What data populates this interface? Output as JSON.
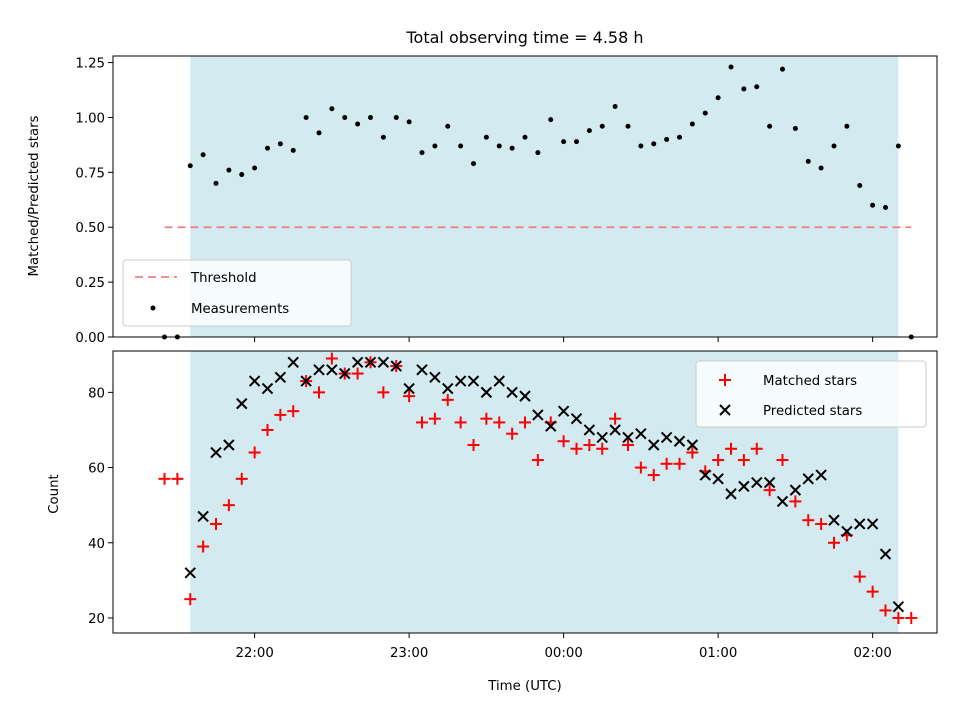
{
  "chart_data": [
    {
      "type": "scatter",
      "title": "Total observing time = 4.58 h",
      "xlabel": "",
      "ylabel": "Matched/Predicted stars",
      "ylim": [
        0,
        1.28
      ],
      "xlim": [
        "21:05",
        "02:25"
      ],
      "yticks": [
        0.0,
        0.25,
        0.5,
        0.75,
        1.0,
        1.25
      ],
      "ytick_labels": [
        "0.00",
        "0.25",
        "0.50",
        "0.75",
        "1.00",
        "1.25"
      ],
      "shaded_interval": [
        "21:35",
        "02:10"
      ],
      "shade_color": "#d3eaf0",
      "threshold": {
        "name": "Threshold",
        "value": 0.5,
        "x_range": [
          "21:25",
          "02:15"
        ],
        "color": "#f08080",
        "style": "dashed"
      },
      "series": [
        {
          "name": "Measurements",
          "color": "#000000",
          "marker": "dot",
          "points": [
            [
              "21:25",
              0.0
            ],
            [
              "21:30",
              0.0
            ],
            [
              "21:35",
              0.78
            ],
            [
              "21:40",
              0.83
            ],
            [
              "21:45",
              0.7
            ],
            [
              "21:50",
              0.76
            ],
            [
              "21:55",
              0.74
            ],
            [
              "22:00",
              0.77
            ],
            [
              "22:05",
              0.86
            ],
            [
              "22:10",
              0.88
            ],
            [
              "22:15",
              0.85
            ],
            [
              "22:20",
              1.0
            ],
            [
              "22:25",
              0.93
            ],
            [
              "22:30",
              1.04
            ],
            [
              "22:35",
              1.0
            ],
            [
              "22:40",
              0.97
            ],
            [
              "22:45",
              1.0
            ],
            [
              "22:50",
              0.91
            ],
            [
              "22:55",
              1.0
            ],
            [
              "23:00",
              0.98
            ],
            [
              "23:05",
              0.84
            ],
            [
              "23:10",
              0.87
            ],
            [
              "23:15",
              0.96
            ],
            [
              "23:20",
              0.87
            ],
            [
              "23:25",
              0.79
            ],
            [
              "23:30",
              0.91
            ],
            [
              "23:35",
              0.87
            ],
            [
              "23:40",
              0.86
            ],
            [
              "23:45",
              0.91
            ],
            [
              "23:50",
              0.84
            ],
            [
              "23:55",
              0.99
            ],
            [
              "00:00",
              0.89
            ],
            [
              "00:05",
              0.89
            ],
            [
              "00:10",
              0.94
            ],
            [
              "00:15",
              0.96
            ],
            [
              "00:20",
              1.05
            ],
            [
              "00:25",
              0.96
            ],
            [
              "00:30",
              0.87
            ],
            [
              "00:35",
              0.88
            ],
            [
              "00:40",
              0.9
            ],
            [
              "00:45",
              0.91
            ],
            [
              "00:50",
              0.97
            ],
            [
              "00:55",
              1.02
            ],
            [
              "01:00",
              1.09
            ],
            [
              "01:05",
              1.23
            ],
            [
              "01:10",
              1.13
            ],
            [
              "01:15",
              1.14
            ],
            [
              "01:20",
              0.96
            ],
            [
              "01:25",
              1.22
            ],
            [
              "01:30",
              0.95
            ],
            [
              "01:35",
              0.8
            ],
            [
              "01:40",
              0.77
            ],
            [
              "01:45",
              0.87
            ],
            [
              "01:50",
              0.96
            ],
            [
              "01:55",
              0.69
            ],
            [
              "02:00",
              0.6
            ],
            [
              "02:05",
              0.59
            ],
            [
              "02:10",
              0.87
            ],
            [
              "02:15",
              0.0
            ]
          ]
        }
      ],
      "legend": {
        "position": "lower-left",
        "entries": [
          "Threshold",
          "Measurements"
        ]
      }
    },
    {
      "type": "scatter",
      "title": "",
      "xlabel": "Time (UTC)",
      "ylabel": "Count",
      "ylim": [
        16,
        91
      ],
      "xlim": [
        "21:05",
        "02:25"
      ],
      "yticks": [
        20,
        40,
        60,
        80
      ],
      "ytick_labels": [
        "20",
        "40",
        "60",
        "80"
      ],
      "xticks": [
        "22:00",
        "23:00",
        "00:00",
        "01:00",
        "02:00"
      ],
      "shaded_interval": [
        "21:35",
        "02:10"
      ],
      "shade_color": "#d3eaf0",
      "series": [
        {
          "name": "Matched stars",
          "color": "#ff0000",
          "marker": "plus",
          "points": [
            [
              "21:25",
              57
            ],
            [
              "21:30",
              57
            ],
            [
              "21:35",
              25
            ],
            [
              "21:40",
              39
            ],
            [
              "21:45",
              45
            ],
            [
              "21:50",
              50
            ],
            [
              "21:55",
              57
            ],
            [
              "22:00",
              64
            ],
            [
              "22:05",
              70
            ],
            [
              "22:10",
              74
            ],
            [
              "22:15",
              75
            ],
            [
              "22:20",
              83
            ],
            [
              "22:25",
              80
            ],
            [
              "22:30",
              89
            ],
            [
              "22:35",
              85
            ],
            [
              "22:40",
              85
            ],
            [
              "22:45",
              88
            ],
            [
              "22:50",
              80
            ],
            [
              "22:55",
              87
            ],
            [
              "23:00",
              79
            ],
            [
              "23:05",
              72
            ],
            [
              "23:10",
              73
            ],
            [
              "23:15",
              78
            ],
            [
              "23:20",
              72
            ],
            [
              "23:25",
              66
            ],
            [
              "23:30",
              73
            ],
            [
              "23:35",
              72
            ],
            [
              "23:40",
              69
            ],
            [
              "23:45",
              72
            ],
            [
              "23:50",
              62
            ],
            [
              "23:55",
              72
            ],
            [
              "00:00",
              67
            ],
            [
              "00:05",
              65
            ],
            [
              "00:10",
              66
            ],
            [
              "00:15",
              65
            ],
            [
              "00:20",
              73
            ],
            [
              "00:25",
              66
            ],
            [
              "00:30",
              60
            ],
            [
              "00:35",
              58
            ],
            [
              "00:40",
              61
            ],
            [
              "00:45",
              61
            ],
            [
              "00:50",
              64
            ],
            [
              "00:55",
              59
            ],
            [
              "01:00",
              62
            ],
            [
              "01:05",
              65
            ],
            [
              "01:10",
              62
            ],
            [
              "01:15",
              65
            ],
            [
              "01:20",
              54
            ],
            [
              "01:25",
              62
            ],
            [
              "01:30",
              51
            ],
            [
              "01:35",
              46
            ],
            [
              "01:40",
              45
            ],
            [
              "01:45",
              40
            ],
            [
              "01:50",
              42
            ],
            [
              "01:55",
              31
            ],
            [
              "02:00",
              27
            ],
            [
              "02:05",
              22
            ],
            [
              "02:10",
              20
            ],
            [
              "02:15",
              20
            ]
          ]
        },
        {
          "name": "Predicted stars",
          "color": "#000000",
          "marker": "x",
          "points": [
            [
              "21:35",
              32
            ],
            [
              "21:40",
              47
            ],
            [
              "21:45",
              64
            ],
            [
              "21:50",
              66
            ],
            [
              "21:55",
              77
            ],
            [
              "22:00",
              83
            ],
            [
              "22:05",
              81
            ],
            [
              "22:10",
              84
            ],
            [
              "22:15",
              88
            ],
            [
              "22:20",
              83
            ],
            [
              "22:25",
              86
            ],
            [
              "22:30",
              86
            ],
            [
              "22:35",
              85
            ],
            [
              "22:40",
              88
            ],
            [
              "22:45",
              88
            ],
            [
              "22:50",
              88
            ],
            [
              "22:55",
              87
            ],
            [
              "23:00",
              81
            ],
            [
              "23:05",
              86
            ],
            [
              "23:10",
              84
            ],
            [
              "23:15",
              81
            ],
            [
              "23:20",
              83
            ],
            [
              "23:25",
              83
            ],
            [
              "23:30",
              80
            ],
            [
              "23:35",
              83
            ],
            [
              "23:40",
              80
            ],
            [
              "23:45",
              79
            ],
            [
              "23:50",
              74
            ],
            [
              "23:55",
              71
            ],
            [
              "00:00",
              75
            ],
            [
              "00:05",
              73
            ],
            [
              "00:10",
              70
            ],
            [
              "00:15",
              68
            ],
            [
              "00:20",
              70
            ],
            [
              "00:25",
              68
            ],
            [
              "00:30",
              69
            ],
            [
              "00:35",
              66
            ],
            [
              "00:40",
              68
            ],
            [
              "00:45",
              67
            ],
            [
              "00:50",
              66
            ],
            [
              "00:55",
              58
            ],
            [
              "01:00",
              57
            ],
            [
              "01:05",
              53
            ],
            [
              "01:10",
              55
            ],
            [
              "01:15",
              56
            ],
            [
              "01:20",
              56
            ],
            [
              "01:25",
              51
            ],
            [
              "01:30",
              54
            ],
            [
              "01:35",
              57
            ],
            [
              "01:40",
              58
            ],
            [
              "01:45",
              46
            ],
            [
              "01:50",
              43
            ],
            [
              "01:55",
              45
            ],
            [
              "02:00",
              45
            ],
            [
              "02:05",
              37
            ],
            [
              "02:10",
              23
            ]
          ]
        }
      ],
      "legend": {
        "position": "top-right",
        "entries": [
          "Matched stars",
          "Predicted stars"
        ]
      }
    }
  ]
}
